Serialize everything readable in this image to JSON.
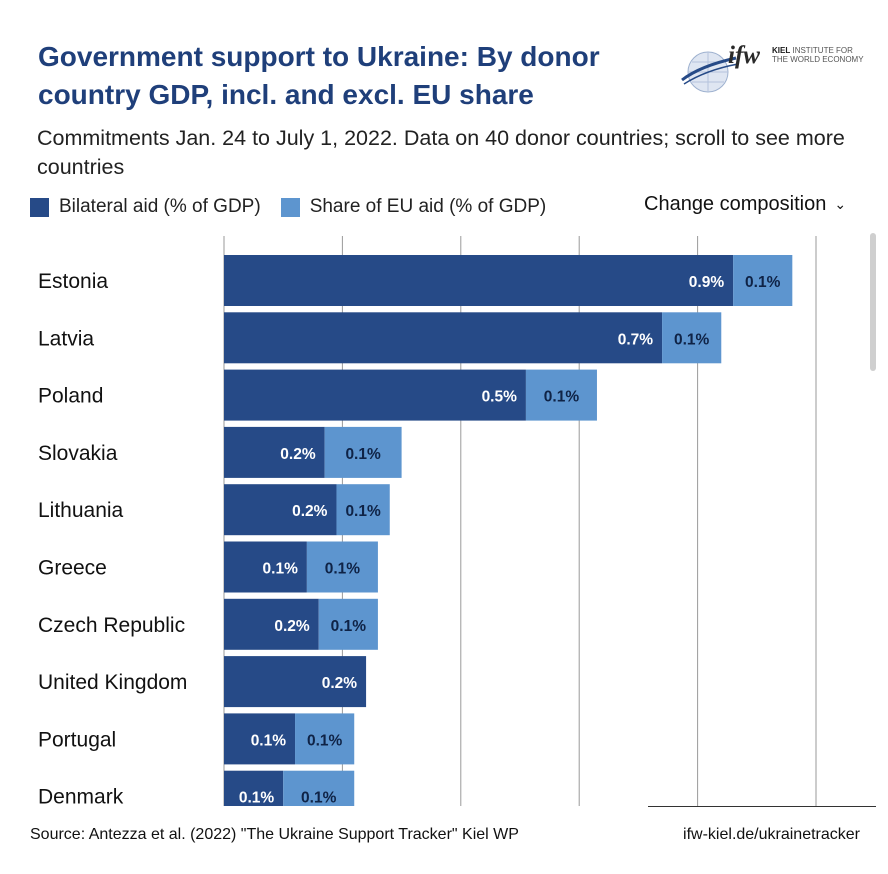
{
  "title": "Government support to Ukraine: By donor country GDP, incl. and excl. EU share",
  "subtitle": "Commitments Jan. 24 to July 1, 2022. Data on 40 donor countries; scroll to see more countries",
  "logo": {
    "mark": "ifw",
    "line1": "KIEL",
    "line2": "INSTITUTE FOR",
    "line3": "THE WORLD ECONOMY"
  },
  "legend": {
    "bilateral": "Bilateral aid (% of GDP)",
    "eu": "Share of EU aid (% of GDP)"
  },
  "change_composition": "Change composition",
  "colors": {
    "bilateral": "#264a87",
    "eu": "#5d95cf",
    "grid": "#9a9a9a",
    "title": "#1f3f7a"
  },
  "footer": {
    "source": "Source: Antezza et al. (2022) \"The Ukraine Support Tracker\" Kiel WP",
    "url": "ifw-kiel.de/ukrainetracker"
  },
  "chart_data": {
    "type": "bar",
    "orientation": "horizontal",
    "stacked": true,
    "categories": [
      "Estonia",
      "Latvia",
      "Poland",
      "Slovakia",
      "Lithuania",
      "Greece",
      "Czech Republic",
      "United Kingdom",
      "Portugal",
      "Denmark"
    ],
    "series": [
      {
        "name": "Bilateral aid (% of GDP)",
        "values": [
          0.86,
          0.74,
          0.51,
          0.17,
          0.19,
          0.14,
          0.16,
          0.24,
          0.12,
          0.1
        ],
        "labels": [
          "0.9%",
          "0.7%",
          "0.5%",
          "0.2%",
          "0.2%",
          "0.1%",
          "0.2%",
          "0.2%",
          "0.1%",
          "0.1%"
        ]
      },
      {
        "name": "Share of EU aid (% of GDP)",
        "values": [
          0.1,
          0.1,
          0.12,
          0.13,
          0.09,
          0.12,
          0.1,
          0.0,
          0.1,
          0.12
        ],
        "labels": [
          "0.1%",
          "0.1%",
          "0.1%",
          "0.1%",
          "0.1%",
          "0.1%",
          "0.1%",
          "",
          "0.1%",
          "0.1%"
        ]
      }
    ],
    "xlim": [
      0,
      1.1
    ],
    "gridlines": [
      0.2,
      0.4,
      0.6,
      0.8,
      1.0
    ]
  }
}
